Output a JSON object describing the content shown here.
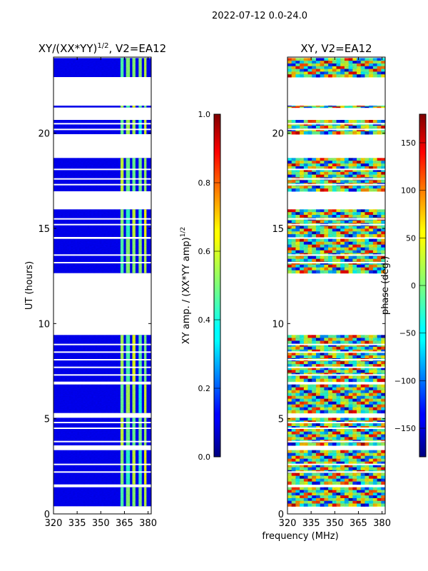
{
  "figure_title": "2022-07-12 0.0-24.0",
  "xlabel_shared": "frequency (MHz)",
  "chart_data": [
    {
      "type": "heatmap",
      "title": "XY/(XX*YY)",
      "title_exponent": "1/2",
      "title_suffix": ", V2=EA12",
      "ylabel": "UT (hours)",
      "xlim": [
        320,
        382
      ],
      "ylim": [
        0,
        24
      ],
      "xticks": [
        320,
        335,
        350,
        365,
        380
      ],
      "yticks": [
        0,
        5,
        10,
        15,
        20
      ],
      "colorbar": {
        "label": "XY amp. / (XX*YY amp)",
        "label_exponent": "1/2",
        "range": [
          0.0,
          1.0
        ],
        "ticks": [
          "0.0",
          "0.2",
          "0.4",
          "0.6",
          "0.8",
          "1.0"
        ],
        "colormap": "jet"
      },
      "data_blocks_ut": [
        [
          0.4,
          1.4
        ],
        [
          1.55,
          3.35
        ],
        [
          3.6,
          5.05
        ],
        [
          5.3,
          6.8
        ],
        [
          6.95,
          9.4
        ],
        [
          12.65,
          14.45
        ],
        [
          14.55,
          16.0
        ],
        [
          16.95,
          18.7
        ],
        [
          19.95,
          20.7
        ],
        [
          21.35,
          21.45
        ],
        [
          22.95,
          23.95
        ]
      ],
      "gap_lines_ut": [
        2.6,
        2.2,
        3.8,
        4.5,
        4.8,
        7.3,
        7.7,
        8.1,
        8.5,
        8.9,
        13.2,
        13.6,
        15.2,
        15.5,
        17.3,
        17.6,
        18.1,
        20.2,
        20.5
      ],
      "bright_channels_mhz": [
        [
          362.5,
          364.5
        ],
        [
          366.0,
          368.5
        ],
        [
          370.0,
          372.0
        ],
        [
          374.0,
          376.0
        ],
        [
          377.5,
          379.0
        ]
      ]
    },
    {
      "type": "heatmap",
      "title": "XY, V2=EA12",
      "ylabel": "",
      "xlim": [
        320,
        382
      ],
      "ylim": [
        0,
        24
      ],
      "xticks": [
        320,
        335,
        350,
        365,
        380
      ],
      "yticks": [
        0,
        5,
        10,
        15,
        20
      ],
      "colorbar": {
        "label": "phase (deg.)",
        "range": [
          -180,
          180
        ],
        "ticks": [
          "−150",
          "−100",
          "−50",
          "0",
          "50",
          "100",
          "150"
        ],
        "tick_values": [
          -150,
          -100,
          -50,
          0,
          50,
          100,
          150
        ],
        "colormap": "jet"
      },
      "data_blocks_ut": [
        [
          0.4,
          1.4
        ],
        [
          1.55,
          3.35
        ],
        [
          3.6,
          5.05
        ],
        [
          5.3,
          6.8
        ],
        [
          6.95,
          9.4
        ],
        [
          12.65,
          14.45
        ],
        [
          14.55,
          16.0
        ],
        [
          16.95,
          18.7
        ],
        [
          19.95,
          20.7
        ],
        [
          21.35,
          21.45
        ],
        [
          22.95,
          23.95
        ]
      ],
      "gap_lines_ut": [
        2.6,
        2.2,
        3.8,
        4.5,
        4.8,
        7.3,
        7.7,
        8.1,
        8.5,
        8.9,
        13.2,
        13.6,
        15.2,
        15.5,
        17.3,
        17.6,
        18.1,
        20.2,
        20.5
      ]
    }
  ]
}
